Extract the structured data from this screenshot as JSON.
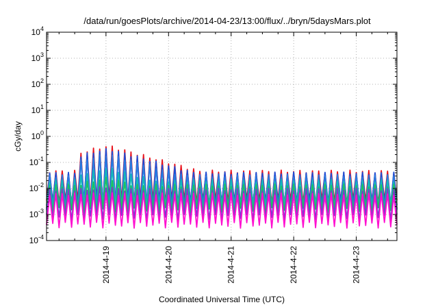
{
  "chart_data": {
    "type": "line",
    "title": "/data/run/goesPlots/archive/2014-04-23/13:00/flux/../bryn/5daysMars.plot",
    "xlabel": "Coordinated Universal Time (UTC)",
    "ylabel": "cGy/day",
    "x_tick_labels": [
      "2014-4-19",
      "2014-4-20",
      "2014-4-21",
      "2014-4-22",
      "2014-4-23"
    ],
    "xlim_days": [
      -0.95,
      4.65
    ],
    "x_ticks_days": [
      0,
      1,
      2,
      3,
      4
    ],
    "y_scale": "log",
    "ylim": [
      0.0001,
      10000
    ],
    "y_ticks": [
      {
        "base": "10",
        "exp": "4",
        "value": 10000
      },
      {
        "base": "10",
        "exp": "3",
        "value": 1000
      },
      {
        "base": "10",
        "exp": "2",
        "value": 100
      },
      {
        "base": "10",
        "exp": "1",
        "value": 10
      },
      {
        "base": "10",
        "exp": "0",
        "value": 1
      },
      {
        "base": "10",
        "exp": "-1",
        "value": 0.1
      },
      {
        "base": "10",
        "exp": "-2",
        "value": 0.01
      },
      {
        "base": "10",
        "exp": "-3",
        "value": 0.001
      },
      {
        "base": "10",
        "exp": "-4",
        "value": 0.0001
      }
    ],
    "grid": true,
    "sawtooth_period_days": 0.1,
    "event_start_day": -0.4,
    "event_peak_day": 0.05,
    "series": [
      {
        "color": "#e8101a",
        "low": 0.003,
        "high": 0.045,
        "event_peak": 0.42
      },
      {
        "color": "#1d4fd8",
        "low": 0.0025,
        "high": 0.038,
        "event_peak": 0.32
      },
      {
        "color": "#2a7de0",
        "low": 0.002,
        "high": 0.03,
        "event_peak": 0.2
      },
      {
        "color": "#17b8b8",
        "low": 0.0018,
        "high": 0.02,
        "event_peak": 0.06
      },
      {
        "color": "#20c060",
        "low": 0.0015,
        "high": 0.013,
        "event_peak": 0.025
      },
      {
        "color": "#7a3ad0",
        "low": 0.0008,
        "high": 0.009,
        "event_peak": 0.012
      },
      {
        "color": "#ff10d0",
        "low": 0.0004,
        "high": 0.006,
        "event_peak": 0.007
      }
    ]
  }
}
